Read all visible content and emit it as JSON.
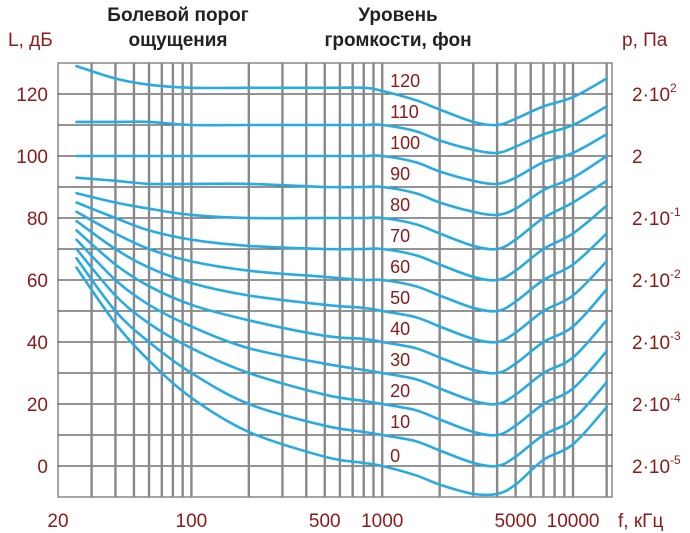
{
  "chart_data": {
    "type": "line",
    "title": "",
    "xlabel": "f, кГц",
    "ylabel": "L, дБ",
    "y2label": "p, Па",
    "header_left": [
      "Болевой порог",
      "ощущения"
    ],
    "header_right": [
      "Уровень",
      "громкости, фон"
    ],
    "x_scale": "log",
    "xlim": [
      20,
      16000
    ],
    "ylim": [
      -10,
      130
    ],
    "x_ticks": [
      "20",
      "100",
      "500",
      "1000",
      "5000",
      "10000"
    ],
    "x_tick_values": [
      20,
      100,
      500,
      1000,
      5000,
      10000
    ],
    "y_ticks": [
      "0",
      "20",
      "40",
      "60",
      "80",
      "100",
      "120"
    ],
    "y_tick_values": [
      0,
      20,
      40,
      60,
      80,
      100,
      120
    ],
    "y2_ticks": [
      {
        "base": "2·10",
        "exp": "-5",
        "value": 0
      },
      {
        "base": "2·10",
        "exp": "-4",
        "value": 20
      },
      {
        "base": "2·10",
        "exp": "-3",
        "value": 40
      },
      {
        "base": "2·10",
        "exp": "-2",
        "value": 60
      },
      {
        "base": "2·10",
        "exp": "-1",
        "value": 80
      },
      {
        "base": "2",
        "exp": "",
        "value": 100
      },
      {
        "base": "2·10",
        "exp": "2",
        "value": 120
      }
    ],
    "grid": true,
    "colors": {
      "curve": "#29abe2",
      "grid": "#888888",
      "text": "#8b1a1a",
      "header": "#222222"
    },
    "x": [
      25,
      40,
      60,
      100,
      200,
      500,
      800,
      1000,
      1500,
      2000,
      3000,
      4000,
      5000,
      7000,
      10000,
      15000
    ],
    "series": [
      {
        "name": "0",
        "label_x": 1100,
        "label_y": 3.5,
        "values": [
          64,
          46,
          34,
          22,
          11,
          3,
          1,
          0,
          -3,
          -6,
          -9,
          -9,
          -6,
          2,
          7,
          19
        ]
      },
      {
        "name": "10",
        "label_x": 1100,
        "label_y": 14.5,
        "values": [
          67,
          50,
          40,
          30,
          20,
          13,
          11,
          10,
          8,
          5,
          1,
          0,
          3,
          10,
          15,
          27
        ]
      },
      {
        "name": "20",
        "label_x": 1100,
        "label_y": 24.5,
        "values": [
          70,
          55,
          46,
          38,
          30,
          23,
          21,
          20,
          18,
          15,
          11,
          10,
          13,
          20,
          25,
          37
        ]
      },
      {
        "name": "30",
        "label_x": 1100,
        "label_y": 34.5,
        "values": [
          73,
          60,
          52,
          45,
          38,
          33,
          31,
          30,
          28,
          25,
          21,
          20,
          23,
          30,
          35,
          47
        ]
      },
      {
        "name": "40",
        "label_x": 1100,
        "label_y": 44.5,
        "values": [
          76,
          65,
          58,
          52,
          47,
          42,
          41,
          40,
          38,
          35,
          31,
          30,
          33,
          40,
          45,
          57
        ]
      },
      {
        "name": "50",
        "label_x": 1100,
        "label_y": 54.5,
        "values": [
          79,
          70,
          64,
          59,
          55,
          52,
          51,
          50,
          48,
          45,
          41,
          40,
          43,
          50,
          55,
          66
        ]
      },
      {
        "name": "60",
        "label_x": 1100,
        "label_y": 64.5,
        "values": [
          82,
          75,
          70,
          66,
          63,
          61,
          60,
          60,
          58,
          55,
          51,
          50,
          53,
          60,
          65,
          75
        ]
      },
      {
        "name": "70",
        "label_x": 1100,
        "label_y": 74.5,
        "values": [
          85,
          80,
          76,
          73,
          71,
          70,
          70,
          70,
          68,
          65,
          61,
          60,
          63,
          70,
          75,
          84
        ]
      },
      {
        "name": "80",
        "label_x": 1100,
        "label_y": 84.5,
        "values": [
          88,
          85,
          83,
          81,
          80,
          80,
          80,
          80,
          78,
          75,
          71,
          70,
          73,
          80,
          85,
          92
        ]
      },
      {
        "name": "90",
        "label_x": 1100,
        "label_y": 94.5,
        "values": [
          93,
          92,
          91,
          91,
          91,
          90,
          90,
          90,
          88,
          85,
          82,
          81,
          83,
          89,
          93,
          100
        ]
      },
      {
        "name": "100",
        "label_x": 1100,
        "label_y": 104.5,
        "values": [
          100,
          100,
          100,
          100,
          100,
          100,
          100,
          100,
          98,
          95,
          92,
          91,
          93,
          98,
          101,
          107
        ]
      },
      {
        "name": "110",
        "label_x": 1100,
        "label_y": 114.5,
        "values": [
          111,
          111,
          111,
          110,
          110,
          110,
          110,
          110,
          108,
          105,
          102,
          101,
          103,
          107,
          110,
          116
        ]
      },
      {
        "name": "120",
        "label_x": 1100,
        "label_y": 124.5,
        "values": [
          129,
          125,
          123,
          122,
          122,
          122,
          122,
          121,
          118,
          115,
          111,
          110,
          112,
          116,
          119,
          125
        ]
      }
    ]
  }
}
